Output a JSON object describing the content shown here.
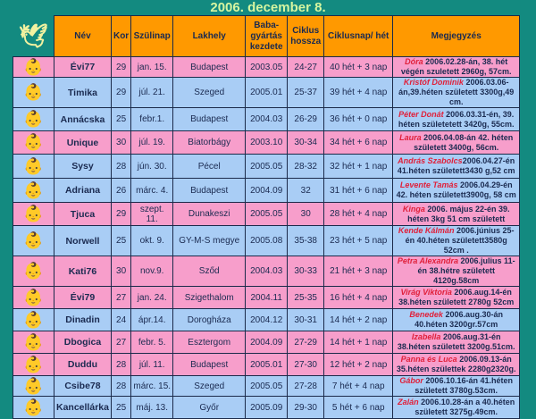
{
  "title": "2006. december 8.",
  "headers": [
    "Név",
    "Kor",
    "Szülinap",
    "Lakhely",
    "Baba-gyártás kezdete",
    "Ciklus hossza",
    "Ciklusnap/ hét",
    "Megjegyzés"
  ],
  "colors": {
    "pink": "#f79ecb",
    "blue": "#a9cdf5",
    "header": "#ff9900",
    "background": "#138a80",
    "baby_name": "#e0203a"
  },
  "rows": [
    {
      "color": "pink",
      "name": "Évi77",
      "age": "29",
      "birthday": "jan. 15.",
      "city": "Budapest",
      "start": "2003.05",
      "cycle": "24-27",
      "day": "40 hét + 3 nap",
      "baby": "Dóra",
      "note": " 2006.02.28-án, 38. hét végén szuletett 2960g, 57cm."
    },
    {
      "color": "blue",
      "name": "Timika",
      "age": "29",
      "birthday": "júl. 21.",
      "city": "Szeged",
      "start": "2005.01",
      "cycle": "25-37",
      "day": "39 hét + 4 nap",
      "baby": "Kristóf Dominik",
      "note": " 2006.03.06-án,39.héten született 3300g,49 cm."
    },
    {
      "color": "blue",
      "name": "Annácska",
      "age": "25",
      "birthday": "febr.1.",
      "city": "Budapest",
      "start": "2004.03",
      "cycle": "26-29",
      "day": "36 hét + 0 nap",
      "baby": "Péter Donát",
      "note": " 2006.03.31-én, 39. héten születetett 3420g, 55cm."
    },
    {
      "color": "pink",
      "name": "Unique",
      "age": "30",
      "birthday": "júl. 19.",
      "city": "Biatorbágy",
      "start": "2003.10",
      "cycle": "30-34",
      "day": "34 hét + 6 nap",
      "baby": "Laura",
      "note": " 2006.04.08-án 42. héten született 3400g, 56cm."
    },
    {
      "color": "blue",
      "name": "Sysy",
      "age": "28",
      "birthday": "jún. 30.",
      "city": "Pécel",
      "start": "2005.05",
      "cycle": "28-32",
      "day": "32 hét + 1 nap",
      "baby": "András Szabolcs",
      "note": "2006.04.27-én 41.héten született3430 g,52 cm"
    },
    {
      "color": "blue",
      "name": "Adriana",
      "age": "26",
      "birthday": "márc. 4.",
      "city": "Budapest",
      "start": "2004.09",
      "cycle": "32",
      "day": "31 hét + 6 nap",
      "baby": "Levente Tamás",
      "note": " 2006.04.29-én 42. héten született3900g, 58 cm"
    },
    {
      "color": "pink",
      "name": "Tjuca",
      "age": "29",
      "birthday": "szept. 11.",
      "city": "Dunakeszi",
      "start": "2005.05",
      "cycle": "30",
      "day": "28 hét + 4 nap",
      "baby": "Kinga",
      "note": " 2006. május 22-én 39. héten 3kg 51 cm született"
    },
    {
      "color": "blue",
      "name": "Norwell",
      "age": "25",
      "birthday": "okt. 9.",
      "city": "GY-M-S megye",
      "start": "2005.08",
      "cycle": "35-38",
      "day": "23 hét + 5 nap",
      "baby": "Kende Kálmán",
      "note": " 2006.június 25-én 40.héten született3580g 52cm ."
    },
    {
      "color": "pink",
      "name": "Kati76",
      "age": "30",
      "birthday": "nov.9.",
      "city": "Sződ",
      "start": "2004.03",
      "cycle": "30-33",
      "day": "21 hét + 3 nap",
      "baby": "Petra Alexandra",
      "note": " 2006.julius 11-én 38.hétre született 4120g.58cm"
    },
    {
      "color": "pink",
      "name": "Évi79",
      "age": "27",
      "birthday": "jan. 24.",
      "city": "Szigethalom",
      "start": "2004.11",
      "cycle": "25-35",
      "day": "16 hét + 4 nap",
      "baby": "Virág Viktoria",
      "note": " 2006.aug.14-én 38.héten született 2780g 52cm"
    },
    {
      "color": "blue",
      "name": "Dinadin",
      "age": "24",
      "birthday": "ápr.14.",
      "city": "Dorogháza",
      "start": "2004.12",
      "cycle": "30-31",
      "day": "14 hét + 2 nap",
      "baby": "Benedek",
      "note": " 2006.aug.30-án 40.héten 3200gr.57cm"
    },
    {
      "color": "pink",
      "name": "Dbogica",
      "age": "27",
      "birthday": "febr. 5.",
      "city": "Esztergom",
      "start": "2004.09",
      "cycle": "27-29",
      "day": "14 hét + 1 nap",
      "baby": "Izabella",
      "note": " 2006.aug.31-én 38.héten született 3200g.51cm."
    },
    {
      "color": "pink",
      "name": "Duddu",
      "age": "28",
      "birthday": "júl. 11.",
      "city": "Budapest",
      "start": "2005.01",
      "cycle": "27-30",
      "day": "12 hét + 2 nap",
      "baby": "Panna és Luca",
      "note": " 2006.09.13-án 35.héten születtek 2280g2320g."
    },
    {
      "color": "blue",
      "name": "Csibe78",
      "age": "28",
      "birthday": "márc. 15.",
      "city": "Szeged",
      "start": "2005.05",
      "cycle": "27-28",
      "day": "7 hét + 4 nap",
      "baby": "Gábor",
      "note": " 2006.10.16-án 41.héten született 3780g.53cm."
    },
    {
      "color": "blue",
      "name": "Kancellárka",
      "age": "25",
      "birthday": "máj. 13.",
      "city": "Győr",
      "start": "2005.09",
      "cycle": "29-30",
      "day": "5 hét + 6 nap",
      "baby": "Zalán",
      "note": " 2006.10.28-án a 40.héten született 3275g.49cm."
    }
  ]
}
